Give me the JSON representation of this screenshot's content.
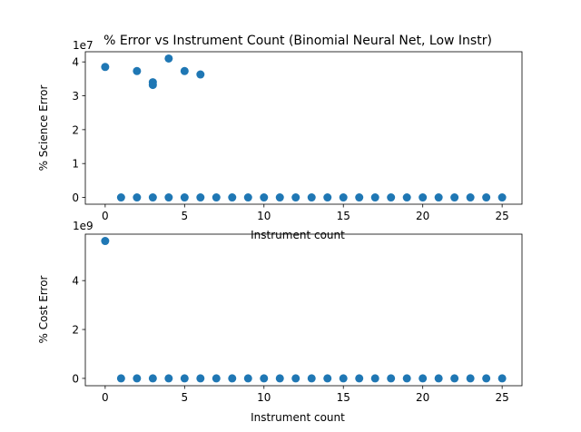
{
  "chart_data": [
    {
      "type": "scatter",
      "title": "% Error vs Instrument Count (Binomial Neural Net, Low Instr)",
      "xlabel": "Instrument count",
      "ylabel": "% Science Error",
      "offset_label": "1e7",
      "xlim": [
        -1.25,
        26.25
      ],
      "ylim": [
        -2000000,
        43000000
      ],
      "xticks": [
        0,
        5,
        10,
        15,
        20,
        25
      ],
      "yticks": [
        0,
        10000000,
        20000000,
        30000000,
        40000000
      ],
      "ytick_labels": [
        "0",
        "1",
        "2",
        "3",
        "4"
      ],
      "marker_color": "#1f77b4",
      "points": [
        {
          "x": 0,
          "y": 38500000
        },
        {
          "x": 2,
          "y": 37300000
        },
        {
          "x": 3,
          "y": 34000000
        },
        {
          "x": 3,
          "y": 33200000
        },
        {
          "x": 4,
          "y": 41000000
        },
        {
          "x": 5,
          "y": 37300000
        },
        {
          "x": 6,
          "y": 36300000
        },
        {
          "x": 1,
          "y": 0
        },
        {
          "x": 2,
          "y": 0
        },
        {
          "x": 3,
          "y": 0
        },
        {
          "x": 4,
          "y": 0
        },
        {
          "x": 5,
          "y": 0
        },
        {
          "x": 6,
          "y": 0
        },
        {
          "x": 7,
          "y": 0
        },
        {
          "x": 8,
          "y": 0
        },
        {
          "x": 9,
          "y": 0
        },
        {
          "x": 10,
          "y": 0
        },
        {
          "x": 11,
          "y": 0
        },
        {
          "x": 12,
          "y": 0
        },
        {
          "x": 13,
          "y": 0
        },
        {
          "x": 14,
          "y": 0
        },
        {
          "x": 15,
          "y": 0
        },
        {
          "x": 16,
          "y": 0
        },
        {
          "x": 17,
          "y": 0
        },
        {
          "x": 18,
          "y": 0
        },
        {
          "x": 19,
          "y": 0
        },
        {
          "x": 20,
          "y": 0
        },
        {
          "x": 21,
          "y": 0
        },
        {
          "x": 22,
          "y": 0
        },
        {
          "x": 23,
          "y": 0
        },
        {
          "x": 24,
          "y": 0
        },
        {
          "x": 25,
          "y": 0
        }
      ]
    },
    {
      "type": "scatter",
      "title": "",
      "xlabel": "Instrument count",
      "ylabel": "% Cost Error",
      "offset_label": "1e9",
      "xlim": [
        -1.25,
        26.25
      ],
      "ylim": [
        -300000000,
        5900000000
      ],
      "xticks": [
        0,
        5,
        10,
        15,
        20,
        25
      ],
      "yticks": [
        0,
        2000000000,
        4000000000
      ],
      "ytick_labels": [
        "0",
        "2",
        "4"
      ],
      "marker_color": "#1f77b4",
      "points": [
        {
          "x": 0,
          "y": 5620000000
        },
        {
          "x": 1,
          "y": 0
        },
        {
          "x": 2,
          "y": 0
        },
        {
          "x": 3,
          "y": 0
        },
        {
          "x": 4,
          "y": 0
        },
        {
          "x": 5,
          "y": 0
        },
        {
          "x": 6,
          "y": 0
        },
        {
          "x": 7,
          "y": 0
        },
        {
          "x": 8,
          "y": 0
        },
        {
          "x": 9,
          "y": 0
        },
        {
          "x": 10,
          "y": 0
        },
        {
          "x": 11,
          "y": 0
        },
        {
          "x": 12,
          "y": 0
        },
        {
          "x": 13,
          "y": 0
        },
        {
          "x": 14,
          "y": 0
        },
        {
          "x": 15,
          "y": 0
        },
        {
          "x": 16,
          "y": 0
        },
        {
          "x": 17,
          "y": 0
        },
        {
          "x": 18,
          "y": 0
        },
        {
          "x": 19,
          "y": 0
        },
        {
          "x": 20,
          "y": 0
        },
        {
          "x": 21,
          "y": 0
        },
        {
          "x": 22,
          "y": 0
        },
        {
          "x": 23,
          "y": 0
        },
        {
          "x": 24,
          "y": 0
        },
        {
          "x": 25,
          "y": 0
        }
      ]
    }
  ]
}
